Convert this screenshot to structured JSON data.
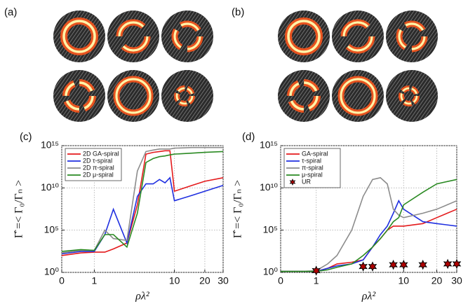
{
  "images": {
    "a": {
      "label": "(a)"
    },
    "b": {
      "label": "(b)"
    }
  },
  "chart_data": [
    {
      "type": "line",
      "panel_label": "(c)",
      "xlabel": "ρλ²",
      "ylabel": "Γ̂ =< Γ₀/Γₙ >",
      "xscale": "symlog",
      "yscale": "log",
      "grid": true,
      "legend": "upper left",
      "xlim": [
        0,
        30
      ],
      "xticks": [
        0,
        1,
        10,
        20,
        30
      ],
      "ylim": [
        1,
        1000000000000000.0
      ],
      "yticks": [
        {
          "value": 1,
          "label": "10⁰"
        },
        {
          "value": 100000,
          "label": "10⁵"
        },
        {
          "value": 10000000000,
          "label": "10¹⁰"
        },
        {
          "value": 1000000000000000.0,
          "label": "10¹⁵"
        }
      ],
      "x": [
        0,
        0.5,
        1,
        1.5,
        2,
        3,
        4,
        5,
        6,
        7,
        8,
        9,
        10,
        15,
        20,
        30
      ],
      "series": [
        {
          "name": "2D GA-spiral",
          "color": "#e41a1c",
          "values": [
            100,
            200,
            250,
            250,
            600,
            3000,
            100000000.0,
            100000000000000.0,
            160000000000000.0,
            200000000000000.0,
            250000000000000.0,
            250000000000000.0,
            4000000000.0,
            20000000000.0,
            60000000000.0,
            160000000000.0
          ]
        },
        {
          "name": "2D τ-spiral",
          "color": "#1f2fe0",
          "values": [
            160,
            300,
            300,
            30000,
            30000000.0,
            3000,
            1000000000.0,
            30000000000.0,
            30000000000.0,
            100000000000.0,
            40000000000.0,
            160000000000.0,
            300000000.0,
            1300000000.0,
            4000000000.0,
            20000000000.0
          ]
        },
        {
          "name": "2D π-spiral",
          "color": "#8c8c8c",
          "values": [
            200,
            400,
            400,
            100000,
            10000,
            6000,
            1000000000000.0,
            200000000000000.0,
            300000000000000.0,
            400000000000000.0,
            400000000000000.0,
            400000000000000.0,
            500000000000000.0,
            600000000000000.0,
            600000000000000.0,
            600000000000000.0
          ]
        },
        {
          "name": "2D μ-spiral",
          "color": "#2a8a22",
          "values": [
            300,
            500,
            400,
            30000,
            30000,
            1000,
            10000000.0,
            10000000000000.0,
            30000000000000.0,
            50000000000000.0,
            60000000000000.0,
            80000000000000.0,
            100000000000000.0,
            130000000000000.0,
            160000000000000.0,
            200000000000000.0
          ]
        }
      ]
    },
    {
      "type": "line",
      "panel_label": "(d)",
      "xlabel": "ρλ²",
      "ylabel": "Γ̂ =< Γ₀/Γₙ >",
      "xscale": "symlog",
      "yscale": "log",
      "grid": true,
      "legend": "upper left",
      "xlim": [
        0,
        30
      ],
      "xticks": [
        0,
        1,
        10,
        20,
        30
      ],
      "ylim": [
        1,
        1000000000000000.0
      ],
      "yticks": [
        {
          "value": 1,
          "label": "10⁰"
        },
        {
          "value": 100000,
          "label": "10⁵"
        },
        {
          "value": 10000000000,
          "label": "10¹⁰"
        },
        {
          "value": 1000000000000000.0,
          "label": "10¹⁵"
        }
      ],
      "x": [
        0,
        0.5,
        1,
        1.5,
        2,
        3,
        4,
        5,
        6,
        7,
        8,
        9,
        10,
        15,
        20,
        30
      ],
      "series": [
        {
          "name": "GA-spiral",
          "color": "#e41a1c",
          "values": [
            1.3,
            1.3,
            1.3,
            3,
            10,
            16,
            30,
            1000,
            10000,
            100000,
            300000,
            300000,
            300000,
            600000,
            3000000,
            30000000
          ]
        },
        {
          "name": "τ-spiral",
          "color": "#1f2fe0",
          "values": [
            1.3,
            1.3,
            1.3,
            3,
            6,
            10,
            30,
            1000,
            30000,
            300000,
            10000000,
            300000000.0,
            30000000,
            1000000,
            600000,
            300000
          ]
        },
        {
          "name": "π-spiral",
          "color": "#8c8c8c",
          "values": [
            1.3,
            1.3,
            1.6,
            10,
            100,
            100000,
            1000000000.0,
            100000000000.0,
            160000000000.0,
            30000000000.0,
            30000000,
            6000000,
            3000000,
            10000000,
            30000000,
            300000000.0
          ]
        },
        {
          "name": "μ-spiral",
          "color": "#2a8a22",
          "values": [
            1.3,
            1.3,
            1.3,
            2,
            4,
            10,
            100,
            1000,
            10000,
            100000,
            1000000,
            3000000,
            100000000.0,
            3000000000.0,
            30000000000.0,
            100000000000.0
          ]
        },
        {
          "name": "UR",
          "color": "#b00000",
          "marker": "star",
          "x": [
            1,
            4,
            5,
            8,
            10,
            15,
            25,
            30
          ],
          "values": [
            1.6,
            5,
            5,
            8,
            8,
            8,
            10,
            10
          ]
        }
      ]
    }
  ]
}
